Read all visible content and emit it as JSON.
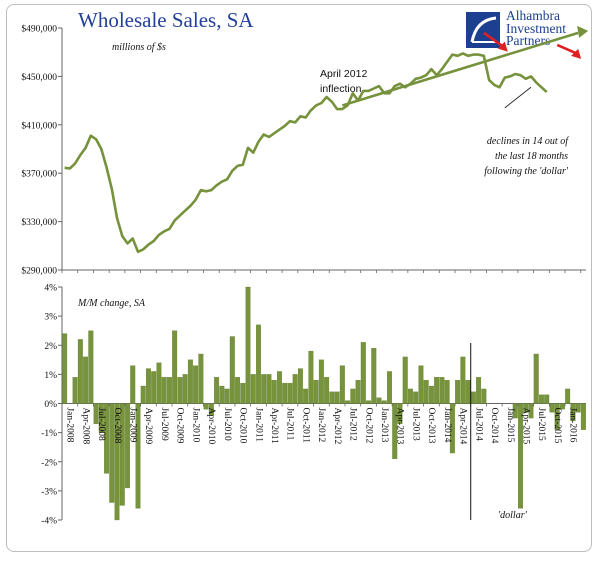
{
  "title": "Wholesale Sales, SA",
  "logo": {
    "line1": "Alhambra",
    "line2": "Investment",
    "line3": "Partners"
  },
  "colors": {
    "line": "#76923c",
    "bar": "#77933c",
    "bar_edge": "#5f7a2e",
    "title": "#23409a",
    "arrow": "#e02020"
  },
  "chart_data": [
    {
      "type": "line",
      "unit_label": "millions of $s",
      "y_ticks": [
        "$290,000",
        "$330,000",
        "$370,000",
        "$410,000",
        "$450,000",
        "$490,000"
      ],
      "ylim": [
        290000,
        490000
      ],
      "x_start": "2008-01",
      "values": [
        374500,
        374000,
        378000,
        385000,
        391000,
        401000,
        398000,
        390000,
        375000,
        357000,
        333000,
        318000,
        312000,
        316000,
        305000,
        307000,
        311000,
        314000,
        319000,
        322000,
        324000,
        331000,
        335000,
        339000,
        343000,
        348000,
        356000,
        355000,
        356000,
        360000,
        363000,
        365000,
        372000,
        376000,
        377000,
        391000,
        387000,
        396000,
        402000,
        400000,
        403000,
        406000,
        409000,
        413000,
        412000,
        417000,
        416000,
        422000,
        426000,
        428000,
        433000,
        429000,
        423000,
        423000,
        426000,
        436000,
        430000,
        438000,
        438000,
        440000,
        442000,
        436000,
        436000,
        442000,
        444000,
        441000,
        444000,
        448000,
        449000,
        451000,
        456000,
        451000,
        456000,
        462000,
        468000,
        467000,
        469000,
        467000,
        468000,
        468000,
        467000,
        447000,
        443000,
        441000,
        449000,
        450000,
        452000,
        451000,
        448000,
        450000,
        445000,
        441000,
        437000
      ],
      "annotations": {
        "inflection": [
          "April 2012",
          "inflection"
        ],
        "declines": [
          "declines in 14 out of",
          "the last 18 months",
          "following the 'dollar'"
        ]
      }
    },
    {
      "type": "bar",
      "unit_label": "M/M change, SA",
      "y_ticks": [
        "4%",
        "3%",
        "2%",
        "1%",
        "0%",
        "-1%",
        "-2%",
        "-3%",
        "-4%"
      ],
      "ylim": [
        -4,
        4
      ],
      "x_tick_labels": [
        "Jan-2008",
        "Apr-2008",
        "Jul-2008",
        "Oct-2008",
        "Jan-2009",
        "Apr-2009",
        "Jul-2009",
        "Oct-2009",
        "Jan-2010",
        "Apr-2010",
        "Jul-2010",
        "Oct-2010",
        "Jan-2011",
        "Apr-2011",
        "Jul-2011",
        "Oct-2011",
        "Jan-2012",
        "Apr-2012",
        "Jul-2012",
        "Oct-2012",
        "Jan-2013",
        "Apr-2013",
        "Jul-2013",
        "Oct-2013",
        "Jan-2014",
        "Apr-2014",
        "Jul-2014",
        "Oct-2014",
        "Jan-2015",
        "Apr-2015",
        "Jul-2015",
        "Oct-2015",
        "Jan-2016"
      ],
      "values": [
        2.4,
        0.0,
        0.9,
        2.2,
        1.6,
        2.5,
        -0.7,
        -1.0,
        -2.4,
        -3.4,
        -4.0,
        -3.5,
        -2.9,
        1.3,
        -3.6,
        0.6,
        1.2,
        1.1,
        1.4,
        0.9,
        0.9,
        2.5,
        0.9,
        1.0,
        1.5,
        1.3,
        1.7,
        -0.2,
        -0.4,
        0.9,
        0.6,
        0.5,
        2.3,
        0.9,
        0.7,
        4.0,
        1.0,
        2.7,
        1.0,
        1.0,
        0.8,
        1.1,
        0.7,
        0.7,
        1.0,
        1.2,
        0.5,
        1.8,
        0.8,
        1.5,
        0.9,
        0.4,
        0.4,
        1.3,
        0.1,
        0.5,
        0.8,
        2.1,
        0.1,
        1.9,
        0.2,
        0.1,
        1.1,
        -1.9,
        -0.7,
        1.6,
        0.5,
        0.4,
        1.3,
        0.8,
        0.6,
        0.9,
        0.9,
        0.8,
        -1.7,
        0.8,
        1.6,
        0.8,
        0.4,
        0.9,
        0.5,
        0.0,
        0.0,
        0.0,
        0.0,
        0.0,
        -0.5,
        -3.6,
        -0.3,
        -0.5,
        1.7,
        0.3,
        0.3,
        -0.3,
        -0.9,
        -0.2,
        0.5,
        -0.6,
        -0.3,
        -0.9
      ],
      "marker_label": "'dollar'",
      "marker_index": 78
    }
  ]
}
